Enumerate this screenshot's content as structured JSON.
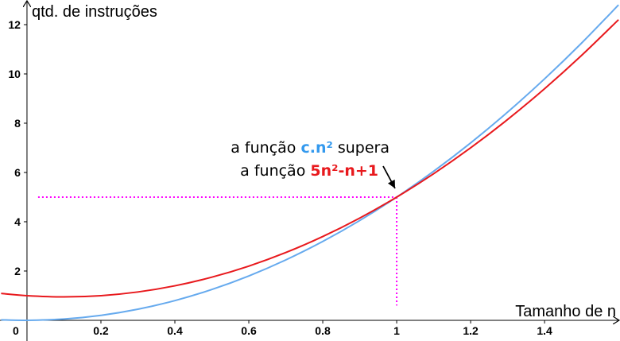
{
  "chart_data": {
    "type": "line",
    "y_label": "qtd. de instruções",
    "x_label": "Tamanho de n",
    "annotation": {
      "line1": [
        "a função ",
        "c.n²",
        " supera"
      ],
      "line2": [
        "a função ",
        "5n²-n+1"
      ]
    },
    "x": [
      -0.07,
      0,
      0.1,
      0.2,
      0.3,
      0.4,
      0.5,
      0.6,
      0.7,
      0.8,
      0.9,
      1,
      1.1,
      1.2,
      1.3,
      1.4,
      1.5,
      1.6
    ],
    "series": [
      {
        "name": "5n²-n+1",
        "color": "#e8191d",
        "values": [
          1.09,
          1,
          0.95,
          1,
          1.15,
          1.4,
          1.75,
          2.2,
          2.75,
          3.4,
          4.15,
          5,
          5.95,
          7,
          8.15,
          9.4,
          10.75,
          12.2
        ]
      },
      {
        "name": "c.n²",
        "color": "#66aaee",
        "values": [
          0.02,
          0,
          0.05,
          0.2,
          0.45,
          0.8,
          1.25,
          1.8,
          2.45,
          3.2,
          4.05,
          5,
          6.05,
          7.2,
          8.45,
          9.8,
          11.25,
          12.8
        ]
      }
    ],
    "reference_lines": {
      "color": "#ff00ff",
      "lines": [
        {
          "x": [
            0.03,
            1
          ],
          "y": [
            5,
            5
          ]
        },
        {
          "x": [
            1,
            1
          ],
          "y": [
            5,
            0.6
          ]
        }
      ]
    },
    "xlim": [
      -0.073,
      1.604
    ],
    "ylim": [
      -0.84,
      13
    ],
    "xticks": [
      0,
      0.2,
      0.4,
      0.6,
      0.8,
      1,
      1.2,
      1.4
    ],
    "yticks": [
      2,
      4,
      6,
      8,
      10,
      12
    ]
  }
}
